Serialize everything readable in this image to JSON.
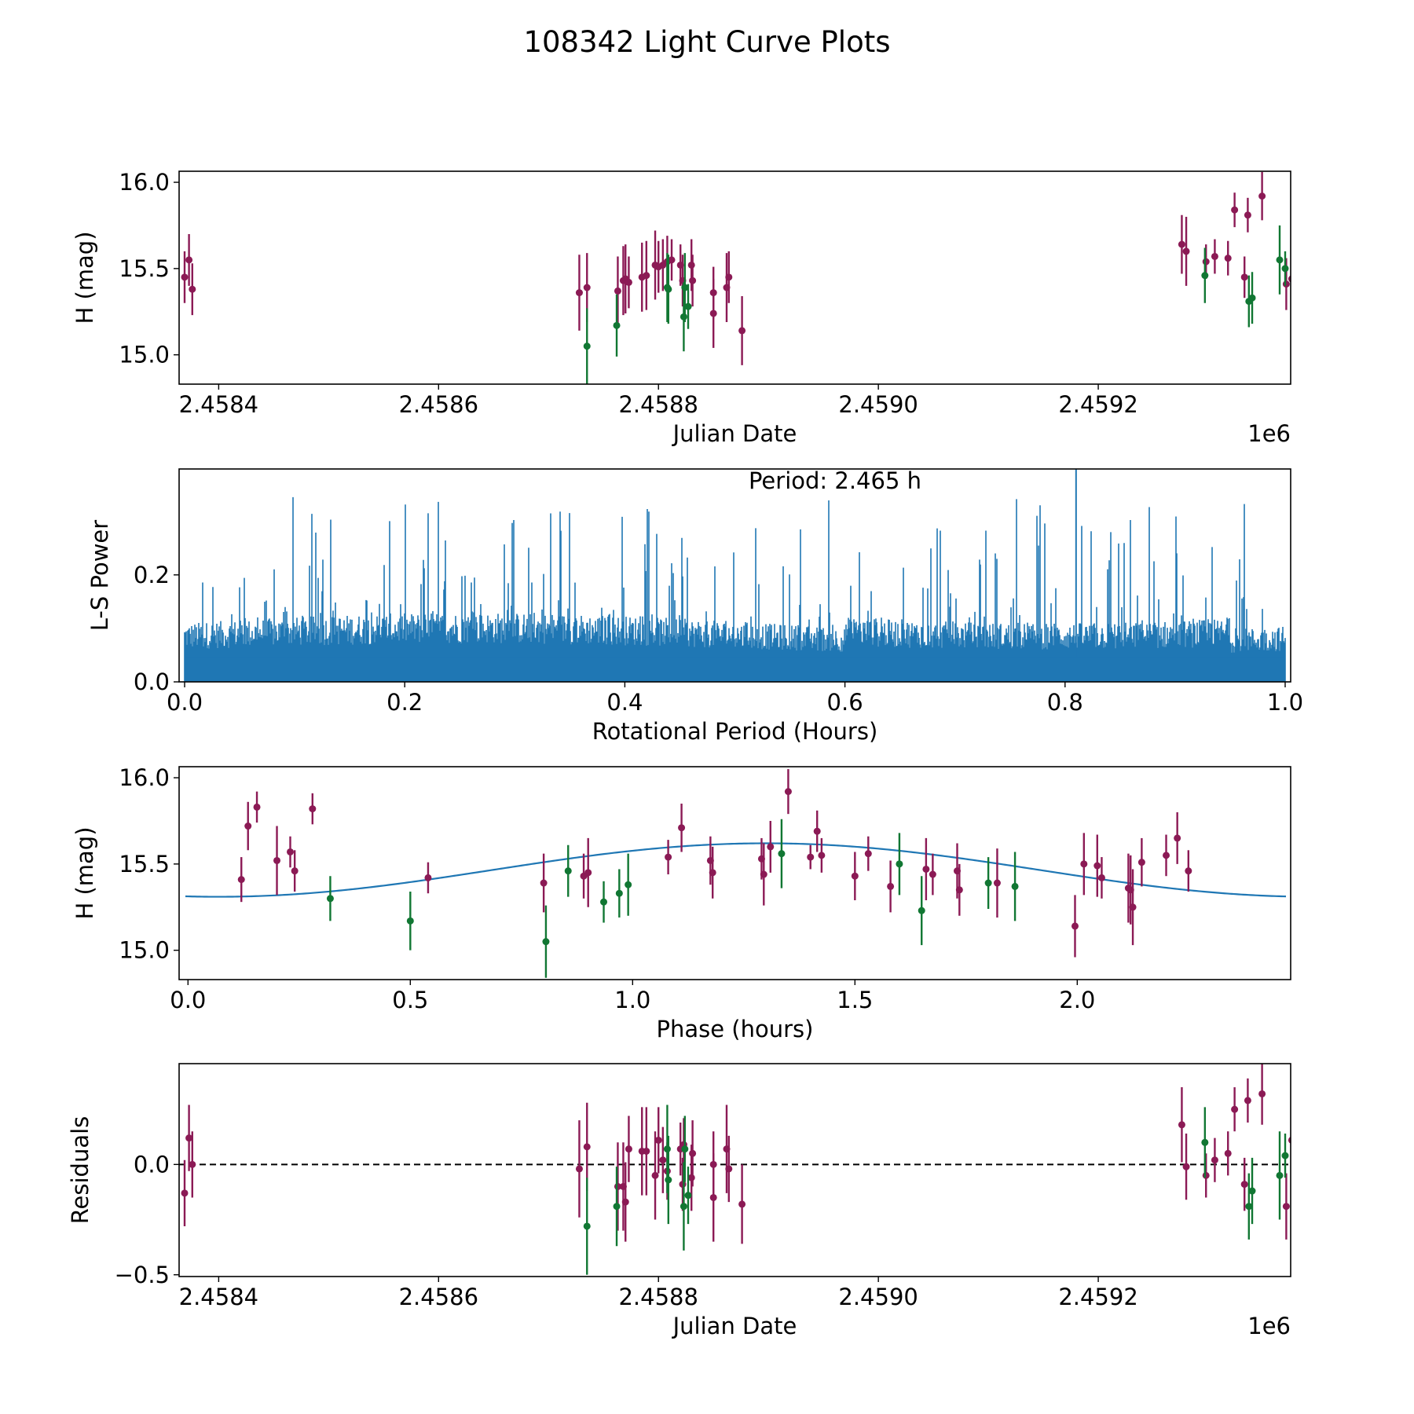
{
  "figure": {
    "suptitle": "108342 Light Curve Plots"
  },
  "colors": {
    "series_a": "#8b1a55",
    "series_b": "#117733",
    "line": "#1f77b4",
    "axis": "#000000"
  },
  "chart_data": [
    {
      "type": "scatter",
      "name": "light-curve",
      "title": "",
      "xlabel": "Julian Date",
      "ylabel": "H (mag)",
      "x_offset_label": "1e6",
      "xlim": [
        2458364,
        2459375
      ],
      "ylim": [
        14.83,
        16.064
      ],
      "xticks": [
        2458400,
        2458600,
        2458800,
        2459000,
        2459200
      ],
      "xtick_labels": [
        "2.4584",
        "2.4586",
        "2.4588",
        "2.4590",
        "2.4592"
      ],
      "yticks": [
        15.0,
        15.5,
        16.0
      ],
      "ytick_labels": [
        "15.0",
        "15.5",
        "16.0"
      ],
      "series": [
        {
          "name": "filter-a",
          "color": "#8b1a55",
          "points": [
            [
              2458369,
              15.45,
              0.15
            ],
            [
              2458373,
              15.55,
              0.15
            ],
            [
              2458376,
              15.38,
              0.15
            ],
            [
              2458728,
              15.36,
              0.22
            ],
            [
              2458735,
              15.39,
              0.2
            ],
            [
              2458763,
              15.37,
              0.2
            ],
            [
              2458768,
              15.43,
              0.2
            ],
            [
              2458770,
              15.44,
              0.2
            ],
            [
              2458773,
              15.42,
              0.15
            ],
            [
              2458785,
              15.45,
              0.2
            ],
            [
              2458789,
              15.46,
              0.2
            ],
            [
              2458797,
              15.52,
              0.2
            ],
            [
              2458800,
              15.51,
              0.15
            ],
            [
              2458804,
              15.52,
              0.15
            ],
            [
              2458808,
              15.54,
              0.15
            ],
            [
              2458812,
              15.55,
              0.12
            ],
            [
              2458820,
              15.52,
              0.12
            ],
            [
              2458822,
              15.43,
              0.15
            ],
            [
              2458830,
              15.52,
              0.15
            ],
            [
              2458831,
              15.43,
              0.15
            ],
            [
              2458850,
              15.36,
              0.15
            ],
            [
              2458850,
              15.24,
              0.2
            ],
            [
              2458862,
              15.39,
              0.2
            ],
            [
              2458864,
              15.45,
              0.15
            ],
            [
              2458876,
              15.14,
              0.2
            ],
            [
              2459276,
              15.64,
              0.17
            ],
            [
              2459280,
              15.6,
              0.2
            ],
            [
              2459298,
              15.54,
              0.1
            ],
            [
              2459306,
              15.57,
              0.1
            ],
            [
              2459318,
              15.56,
              0.1
            ],
            [
              2459324,
              15.84,
              0.1
            ],
            [
              2459333,
              15.45,
              0.12
            ],
            [
              2459336,
              15.81,
              0.1
            ],
            [
              2459349,
              15.92,
              0.14
            ],
            [
              2459371,
              15.41,
              0.15
            ],
            [
              2459376,
              15.44,
              0.15
            ],
            [
              2459378,
              15.7,
              0.22
            ],
            [
              2459381,
              15.72,
              0.15
            ],
            [
              2459384,
              15.44,
              0.12
            ],
            [
              2459390,
              15.71,
              0.16
            ],
            [
              2459440,
              15.5,
              0.2
            ],
            [
              2459440,
              15.49,
              0.2
            ]
          ]
        },
        {
          "name": "filter-b",
          "color": "#117733",
          "points": [
            [
              2458735,
              15.05,
              0.22
            ],
            [
              2458762,
              15.17,
              0.18
            ],
            [
              2458808,
              15.39,
              0.2
            ],
            [
              2458809,
              15.38,
              0.2
            ],
            [
              2458823,
              15.22,
              0.2
            ],
            [
              2458824,
              15.39,
              0.2
            ],
            [
              2458827,
              15.28,
              0.13
            ],
            [
              2459297,
              15.46,
              0.16
            ],
            [
              2459337,
              15.31,
              0.15
            ],
            [
              2459340,
              15.33,
              0.15
            ],
            [
              2459365,
              15.55,
              0.2
            ],
            [
              2459370,
              15.5,
              0.1
            ]
          ]
        }
      ]
    },
    {
      "type": "line",
      "name": "periodogram",
      "xlabel": "Rotational Period (Hours)",
      "ylabel": "L-S Power",
      "annotation": "Period: 2.465 h",
      "xlim": [
        -0.005,
        1.005
      ],
      "ylim": [
        0,
        0.398
      ],
      "xticks": [
        0.0,
        0.2,
        0.4,
        0.6,
        0.8,
        1.0
      ],
      "xtick_labels": [
        "0.0",
        "0.2",
        "0.4",
        "0.6",
        "0.8",
        "1.0"
      ],
      "yticks": [
        0.0,
        0.2
      ],
      "ytick_labels": [
        "0.0",
        "0.2"
      ],
      "series": [
        {
          "name": "power",
          "color": "#1f77b4",
          "x_range": [
            0.0,
            1.0
          ],
          "baseline_max": 0.14,
          "peak_max": 0.39,
          "peak_period": 0.81
        }
      ]
    },
    {
      "type": "scatter",
      "name": "phase-folded",
      "xlabel": "Phase (hours)",
      "ylabel": "H (mag)",
      "xlim": [
        -0.02,
        2.48
      ],
      "ylim": [
        14.83,
        16.064
      ],
      "xticks": [
        0.0,
        0.5,
        1.0,
        1.5,
        2.0
      ],
      "xtick_labels": [
        "0.0",
        "0.5",
        "1.0",
        "1.5",
        "2.0"
      ],
      "yticks": [
        15.0,
        15.5,
        16.0
      ],
      "ytick_labels": [
        "15.0",
        "15.5",
        "16.0"
      ],
      "fit": {
        "name": "sine-model",
        "color": "#1f77b4",
        "mean": 15.465,
        "amplitude": 0.155,
        "period": 2.465,
        "peak_phase": 1.3
      },
      "series": [
        {
          "name": "filter-a",
          "color": "#8b1a55",
          "points": [
            [
              0.12,
              15.41,
              0.13
            ],
            [
              0.135,
              15.72,
              0.14
            ],
            [
              0.155,
              15.83,
              0.09
            ],
            [
              0.2,
              15.52,
              0.2
            ],
            [
              0.23,
              15.57,
              0.09
            ],
            [
              0.24,
              15.46,
              0.12
            ],
            [
              0.28,
              15.82,
              0.09
            ],
            [
              0.54,
              15.42,
              0.09
            ],
            [
              0.8,
              15.39,
              0.17
            ],
            [
              0.89,
              15.43,
              0.13
            ],
            [
              0.9,
              15.45,
              0.2
            ],
            [
              1.08,
              15.54,
              0.1
            ],
            [
              1.11,
              15.71,
              0.14
            ],
            [
              1.175,
              15.52,
              0.14
            ],
            [
              1.18,
              15.45,
              0.15
            ],
            [
              1.29,
              15.53,
              0.12
            ],
            [
              1.295,
              15.44,
              0.18
            ],
            [
              1.31,
              15.6,
              0.15
            ],
            [
              1.35,
              15.92,
              0.13
            ],
            [
              1.4,
              15.54,
              0.07
            ],
            [
              1.415,
              15.69,
              0.12
            ],
            [
              1.425,
              15.55,
              0.1
            ],
            [
              1.5,
              15.43,
              0.14
            ],
            [
              1.53,
              15.56,
              0.1
            ],
            [
              1.58,
              15.37,
              0.15
            ],
            [
              1.66,
              15.47,
              0.18
            ],
            [
              1.675,
              15.44,
              0.12
            ],
            [
              1.73,
              15.46,
              0.16
            ],
            [
              1.735,
              15.35,
              0.15
            ],
            [
              1.82,
              15.39,
              0.2
            ],
            [
              1.995,
              15.14,
              0.18
            ],
            [
              2.015,
              15.5,
              0.18
            ],
            [
              2.045,
              15.49,
              0.18
            ],
            [
              2.055,
              15.42,
              0.12
            ],
            [
              2.115,
              15.36,
              0.2
            ],
            [
              2.12,
              15.35,
              0.2
            ],
            [
              2.125,
              15.25,
              0.22
            ],
            [
              2.145,
              15.51,
              0.14
            ],
            [
              2.2,
              15.55,
              0.12
            ],
            [
              2.225,
              15.65,
              0.15
            ],
            [
              2.25,
              15.46,
              0.12
            ]
          ]
        },
        {
          "name": "filter-b",
          "color": "#117733",
          "points": [
            [
              0.32,
              15.3,
              0.13
            ],
            [
              0.5,
              15.17,
              0.17
            ],
            [
              0.805,
              15.05,
              0.21
            ],
            [
              0.855,
              15.46,
              0.15
            ],
            [
              0.935,
              15.28,
              0.12
            ],
            [
              0.97,
              15.33,
              0.14
            ],
            [
              0.99,
              15.38,
              0.18
            ],
            [
              1.335,
              15.56,
              0.2
            ],
            [
              1.6,
              15.5,
              0.18
            ],
            [
              1.65,
              15.23,
              0.2
            ],
            [
              1.8,
              15.39,
              0.15
            ],
            [
              1.86,
              15.37,
              0.2
            ]
          ]
        }
      ]
    },
    {
      "type": "scatter",
      "name": "residuals",
      "xlabel": "Julian Date",
      "ylabel": "Residuals",
      "x_offset_label": "1e6",
      "xlim": [
        2458364,
        2459375
      ],
      "ylim": [
        -0.508,
        0.457
      ],
      "xticks": [
        2458400,
        2458600,
        2458800,
        2459000,
        2459200
      ],
      "xtick_labels": [
        "2.4584",
        "2.4586",
        "2.4588",
        "2.4590",
        "2.4592"
      ],
      "yticks": [
        -0.5,
        0.0
      ],
      "ytick_labels": [
        "−0.5",
        "0.0"
      ],
      "reference_line": 0.0,
      "series": [
        {
          "name": "filter-a",
          "color": "#8b1a55",
          "points": [
            [
              2458369,
              -0.13,
              0.15
            ],
            [
              2458373,
              0.12,
              0.15
            ],
            [
              2458376,
              0.0,
              0.15
            ],
            [
              2458728,
              -0.02,
              0.22
            ],
            [
              2458735,
              0.08,
              0.2
            ],
            [
              2458763,
              -0.1,
              0.2
            ],
            [
              2458768,
              -0.1,
              0.2
            ],
            [
              2458770,
              -0.17,
              0.18
            ],
            [
              2458773,
              0.07,
              0.15
            ],
            [
              2458785,
              0.06,
              0.2
            ],
            [
              2458789,
              0.06,
              0.2
            ],
            [
              2458797,
              -0.05,
              0.2
            ],
            [
              2458800,
              0.11,
              0.15
            ],
            [
              2458804,
              0.02,
              0.15
            ],
            [
              2458808,
              -0.03,
              0.13
            ],
            [
              2458820,
              0.07,
              0.12
            ],
            [
              2458822,
              -0.09,
              0.12
            ],
            [
              2458823,
              0.09,
              0.12
            ],
            [
              2458830,
              -0.06,
              0.15
            ],
            [
              2458831,
              0.05,
              0.15
            ],
            [
              2458850,
              0.0,
              0.15
            ],
            [
              2458850,
              -0.15,
              0.2
            ],
            [
              2458862,
              0.07,
              0.2
            ],
            [
              2458864,
              -0.02,
              0.15
            ],
            [
              2458876,
              -0.18,
              0.18
            ],
            [
              2459276,
              0.18,
              0.17
            ],
            [
              2459280,
              -0.01,
              0.15
            ],
            [
              2459298,
              -0.05,
              0.1
            ],
            [
              2459306,
              0.02,
              0.1
            ],
            [
              2459318,
              0.05,
              0.1
            ],
            [
              2459324,
              0.25,
              0.1
            ],
            [
              2459333,
              -0.09,
              0.12
            ],
            [
              2459336,
              0.29,
              0.1
            ],
            [
              2459349,
              0.32,
              0.14
            ],
            [
              2459371,
              -0.19,
              0.15
            ],
            [
              2459376,
              0.11,
              0.15
            ],
            [
              2459378,
              0.1,
              0.2
            ],
            [
              2459381,
              0.12,
              0.15
            ],
            [
              2459384,
              0.05,
              0.12
            ],
            [
              2459390,
              0.16,
              0.16
            ],
            [
              2459440,
              0.18,
              0.2
            ],
            [
              2459440,
              0.15,
              0.2
            ]
          ]
        },
        {
          "name": "filter-b",
          "color": "#117733",
          "points": [
            [
              2458735,
              -0.28,
              0.22
            ],
            [
              2458762,
              -0.19,
              0.18
            ],
            [
              2458808,
              0.07,
              0.2
            ],
            [
              2458809,
              -0.07,
              0.2
            ],
            [
              2458823,
              -0.19,
              0.2
            ],
            [
              2458824,
              0.07,
              0.15
            ],
            [
              2458827,
              -0.14,
              0.13
            ],
            [
              2459297,
              0.1,
              0.16
            ],
            [
              2459337,
              -0.19,
              0.15
            ],
            [
              2459340,
              -0.12,
              0.15
            ],
            [
              2459365,
              -0.05,
              0.2
            ],
            [
              2459370,
              0.04,
              0.1
            ]
          ]
        }
      ]
    }
  ]
}
